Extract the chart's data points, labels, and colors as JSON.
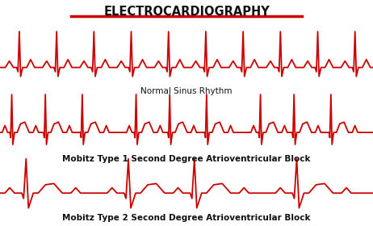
{
  "title": "ELECTROCARDIOGRAPHY",
  "title_color": "#111111",
  "title_underline_color": "#cc0000",
  "ecg_color": "#cc0000",
  "bg_color": "#ffffff",
  "label1": "Normal Sinus Rhythm",
  "label2": "Mobitz Type 1 Second Degree Atrioventricular Block",
  "label3": "Mobitz Type 2 Second Degree Atrioventricular Block",
  "label_fontsize": 7.5,
  "title_fontsize": 10.5,
  "line_width": 1.3
}
